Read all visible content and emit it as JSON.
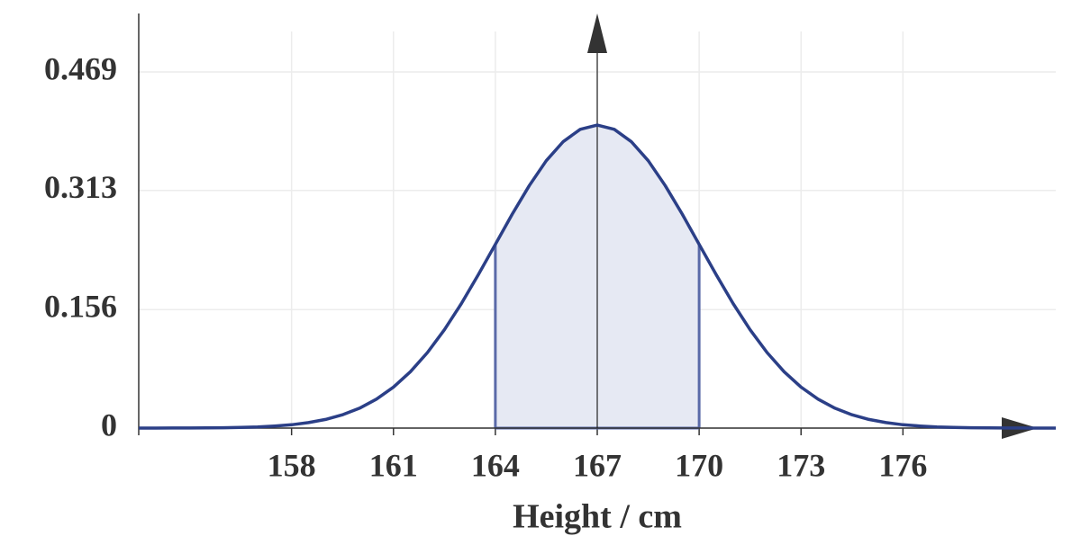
{
  "chart_data": {
    "type": "line",
    "x_label": "Height / cm",
    "x": [
      153.5,
      154,
      154.5,
      155,
      155.5,
      156,
      156.5,
      157,
      157.5,
      158,
      158.5,
      159,
      159.5,
      160,
      160.5,
      161,
      161.5,
      162,
      162.5,
      163,
      163.5,
      164,
      164.5,
      165,
      165.5,
      166,
      166.5,
      167,
      167.5,
      168,
      168.5,
      169,
      169.5,
      170,
      170.5,
      171,
      171.5,
      172,
      172.5,
      173,
      173.5,
      174,
      174.5,
      175,
      175.5,
      176,
      176.5,
      177,
      177.5,
      178,
      178.5,
      179,
      179.5,
      180,
      180.5
    ],
    "y": [
      0,
      0,
      0.0001,
      0.0001,
      0.0003,
      0.0005,
      0.0009,
      0.0015,
      0.0027,
      0.0044,
      0.0072,
      0.0114,
      0.0175,
      0.0262,
      0.0381,
      0.054,
      0.0743,
      0.0995,
      0.1295,
      0.164,
      0.202,
      0.242,
      0.2819,
      0.3194,
      0.3521,
      0.3774,
      0.3934,
      0.399,
      0.3934,
      0.3774,
      0.3521,
      0.3194,
      0.2819,
      0.242,
      0.202,
      0.164,
      0.1295,
      0.0995,
      0.0743,
      0.054,
      0.0381,
      0.0262,
      0.0175,
      0.0114,
      0.0072,
      0.0044,
      0.0027,
      0.0015,
      0.0009,
      0.0005,
      0.0003,
      0.0001,
      0.0001,
      0,
      0
    ],
    "color": "#2b3f87",
    "shaded_range": [
      164,
      170
    ],
    "shade_color": "#e6e9f3",
    "xlim": [
      153.5,
      180.5
    ],
    "ylim": [
      0,
      0.546
    ],
    "xticks": [
      158,
      161,
      164,
      167,
      170,
      173,
      176
    ],
    "yticks": [
      0,
      0.156,
      0.313,
      0.469
    ],
    "grid": true
  }
}
